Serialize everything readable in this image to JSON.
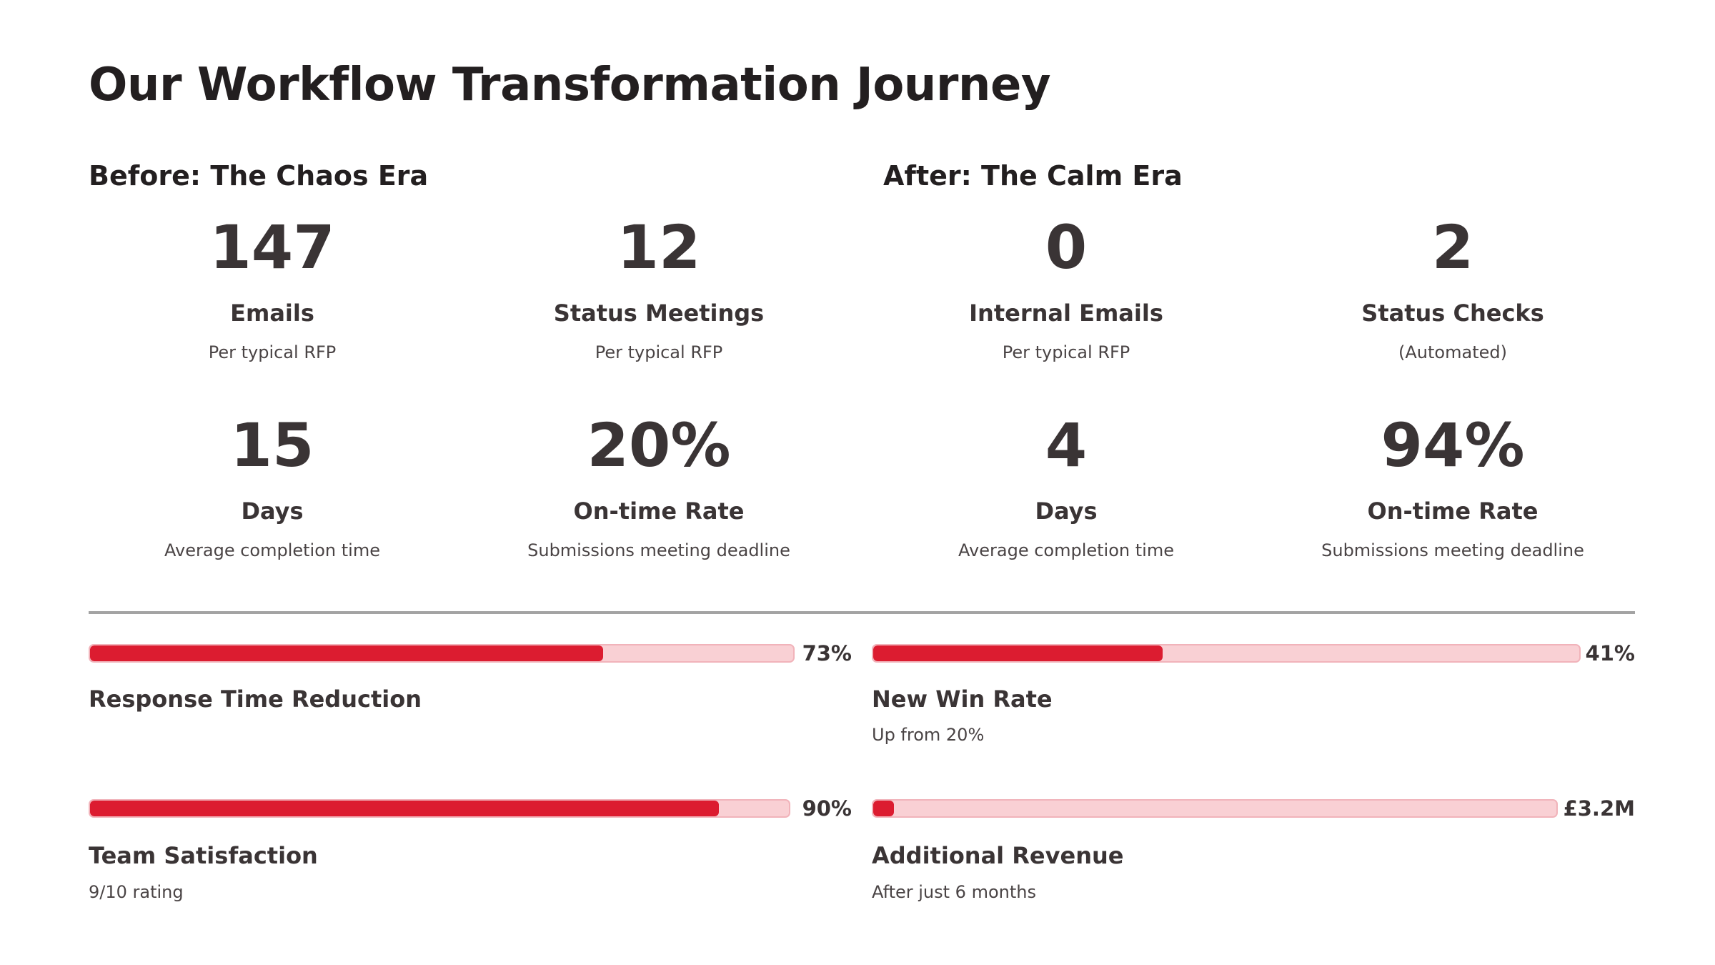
{
  "page": {
    "title": "Our Workflow Transformation Journey"
  },
  "before": {
    "heading": "Before: The Chaos Era",
    "stats": [
      {
        "value": "147",
        "label": "Emails",
        "sub": "Per typical RFP"
      },
      {
        "value": "12",
        "label": "Status Meetings",
        "sub": "Per typical RFP"
      },
      {
        "value": "15",
        "label": "Days",
        "sub": "Average completion time"
      },
      {
        "value": "20%",
        "label": "On-time Rate",
        "sub": "Submissions meeting deadline"
      }
    ]
  },
  "after": {
    "heading": "After: The Calm Era",
    "stats": [
      {
        "value": "0",
        "label": "Internal Emails",
        "sub": "Per typical RFP"
      },
      {
        "value": "2",
        "label": "Status Checks",
        "sub": "(Automated)"
      },
      {
        "value": "4",
        "label": "Days",
        "sub": "Average completion time"
      },
      {
        "value": "94%",
        "label": "On-time Rate",
        "sub": "Submissions meeting deadline"
      }
    ]
  },
  "metrics": [
    {
      "value_text": "73%",
      "fill_percent": 73,
      "label": "Response Time Reduction",
      "sub": ""
    },
    {
      "value_text": "41%",
      "fill_percent": 41,
      "label": "New Win Rate",
      "sub": "Up from 20%"
    },
    {
      "value_text": "90%",
      "fill_percent": 90,
      "label": "Team Satisfaction",
      "sub": "9/10 rating"
    },
    {
      "value_text": "£3.2M",
      "fill_percent": 3,
      "label": "Additional Revenue",
      "sub": "After just 6 months"
    }
  ],
  "colors": {
    "accent": "#dc1c30",
    "bar_track": "#f9d0d4",
    "text_dark": "#231f20",
    "divider": "#a3a3a3"
  }
}
